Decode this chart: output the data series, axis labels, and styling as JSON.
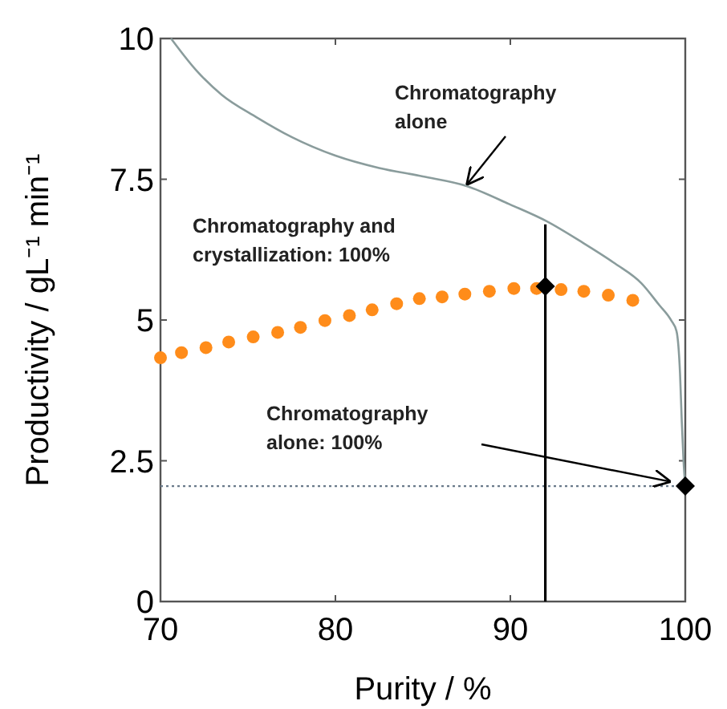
{
  "chart_data": {
    "type": "line",
    "xlabel": "Purity / %",
    "ylabel": "Productivity / gL⁻¹ min⁻¹",
    "xlim": [
      70,
      100
    ],
    "xticks": [
      70,
      80,
      90,
      100
    ],
    "ylim": [
      0,
      10
    ],
    "yticks": [
      0,
      {
        "value": 2.5,
        "label": "2.5"
      },
      5,
      {
        "value": 7.5,
        "label": "7.5"
      },
      10
    ],
    "grid": false,
    "series": [
      {
        "color": "#8a9c9c",
        "x": [
          70.6,
          72,
          73.5,
          75.5,
          77.5,
          80,
          82.5,
          85,
          87.5,
          90,
          92.1,
          94,
          96,
          97.5,
          98.5,
          99.2,
          99.5,
          99.7,
          99.8,
          99.9,
          100
        ],
        "values": [
          10,
          9.45,
          9.0,
          8.6,
          8.25,
          7.92,
          7.7,
          7.55,
          7.38,
          7.05,
          6.75,
          6.4,
          6.0,
          5.65,
          5.27,
          4.99,
          4.8,
          4.05,
          3.2,
          2.5,
          2.05
        ]
      },
      {
        "type": "scatter",
        "marker": "circle",
        "color": "#ff8c1a",
        "x": [
          70,
          71.2,
          72.6,
          73.9,
          75.3,
          76.7,
          78.0,
          79.4,
          80.8,
          82.1,
          83.5,
          84.8,
          86.1,
          87.4,
          88.8,
          90.2,
          91.5,
          92.9,
          94.2,
          95.6,
          97.0
        ],
        "values": [
          4.33,
          4.42,
          4.51,
          4.61,
          4.7,
          4.78,
          4.87,
          4.99,
          5.08,
          5.18,
          5.29,
          5.38,
          5.41,
          5.46,
          5.51,
          5.56,
          5.56,
          5.54,
          5.51,
          5.44,
          5.35
        ]
      },
      {
        "color": "#000000",
        "x": [
          92,
          92
        ],
        "values": [
          0,
          6.7
        ]
      },
      {
        "type": "scatter",
        "marker": "diamond",
        "color": "#000000",
        "x": [
          92,
          100
        ],
        "values": [
          5.6,
          2.05
        ]
      }
    ],
    "ref_lines": [
      {
        "axis": "y",
        "value": 2.05,
        "color": "#6a7a8a",
        "line_style": "dotted"
      }
    ],
    "annotations": [
      {
        "text": "Chromatography alone",
        "x": 87.5,
        "y": 7.4
      },
      "Chromatography and crystallization: 100%",
      "Chromatography alone: 100%"
    ]
  }
}
